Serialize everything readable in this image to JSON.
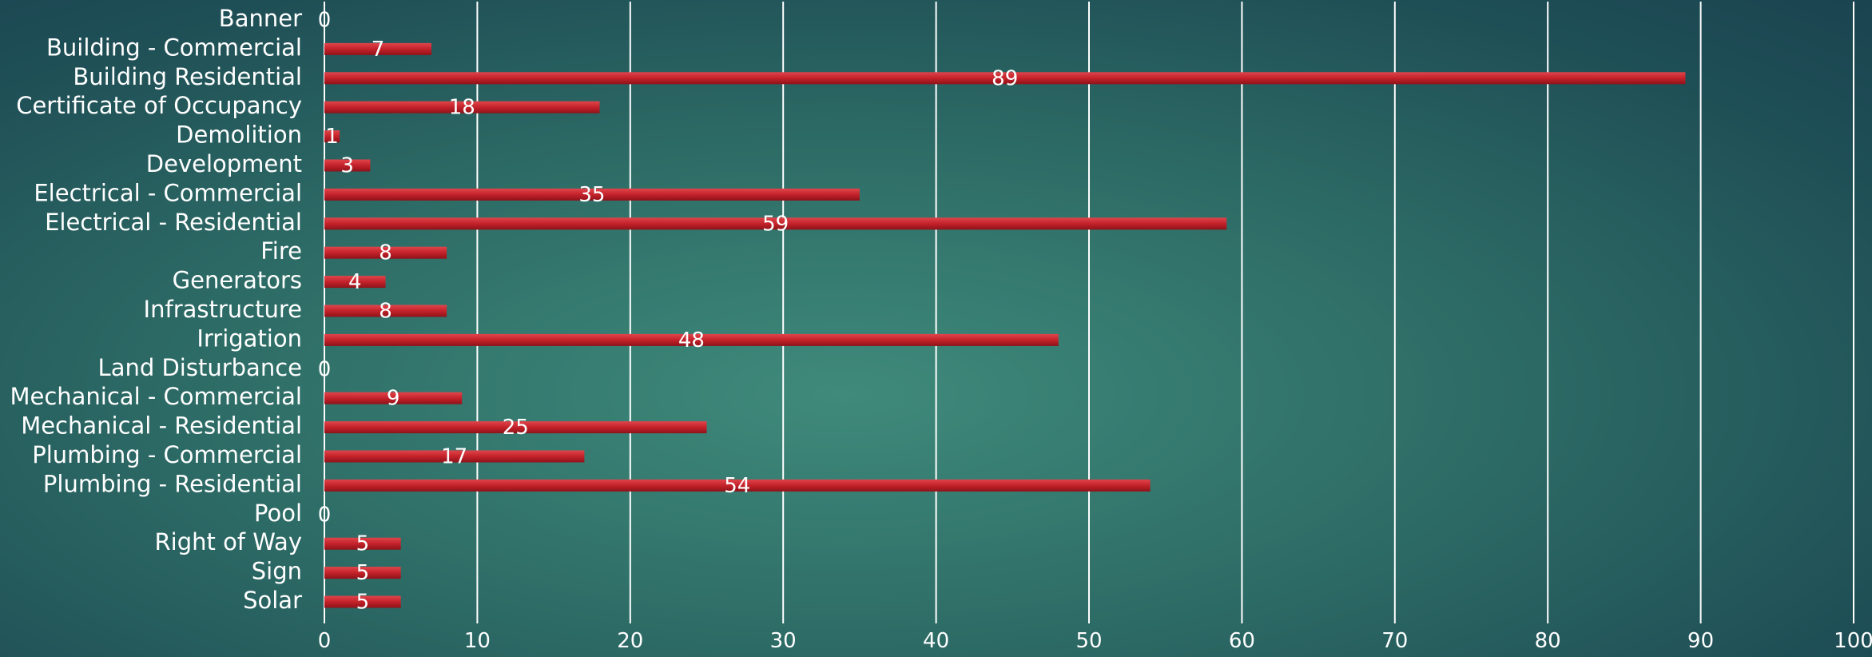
{
  "chart_data": {
    "type": "bar",
    "orientation": "horizontal",
    "categories": [
      "Banner",
      "Building - Commercial",
      "Building Residential",
      "Certificate of Occupancy",
      "Demolition",
      "Development",
      "Electrical - Commercial",
      "Electrical - Residential",
      "Fire",
      "Generators",
      "Infrastructure",
      "Irrigation",
      "Land Disturbance",
      "Mechanical - Commercial",
      "Mechanical - Residential",
      "Plumbing - Commercial",
      "Plumbing - Residential",
      "Pool",
      "Right of Way",
      "Sign",
      "Solar"
    ],
    "values": [
      0,
      7,
      89,
      18,
      1,
      3,
      35,
      59,
      8,
      4,
      8,
      48,
      0,
      9,
      25,
      17,
      54,
      0,
      5,
      5,
      5
    ],
    "xlim": [
      0,
      100
    ],
    "xticks": [
      0,
      10,
      20,
      30,
      40,
      50,
      60,
      70,
      80,
      90,
      100
    ],
    "grid": true,
    "bar_color": "#c4222a",
    "title": "",
    "xlabel": "",
    "ylabel": ""
  }
}
